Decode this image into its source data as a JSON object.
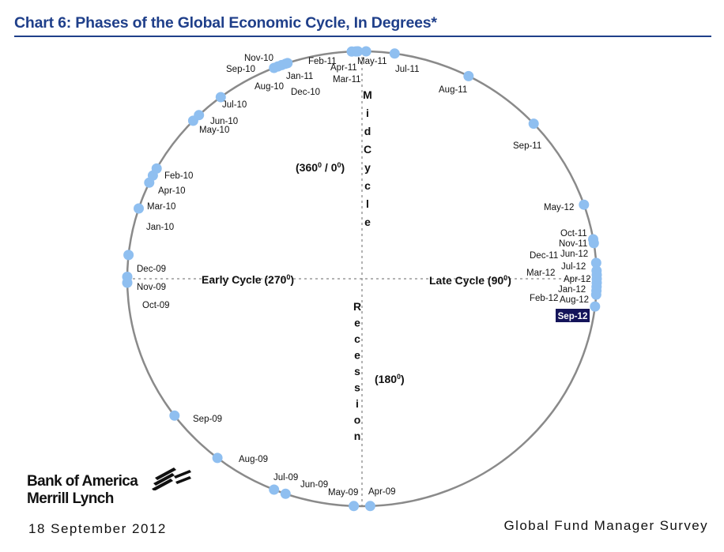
{
  "header": {
    "title": "Chart 6: Phases of the Global Economic Cycle, In Degrees*"
  },
  "footer": {
    "logo_line1": "Bank of America",
    "logo_line2": "Merrill Lynch",
    "date": "18 September 2012",
    "survey": "Global Fund Manager Survey"
  },
  "colors": {
    "title": "#1f3f8a",
    "circle": "#8a8a8a",
    "point": "#8fbff0",
    "highlight_bg": "#14145a",
    "highlight_text": "#ffffff"
  },
  "chart_data": {
    "type": "scatter",
    "coordinate_system": "polar-degrees",
    "orientation": "0° at top, increasing clockwise",
    "axis_labels": {
      "top": {
        "text": "Mid Cycle",
        "angle_label": "(360",
        "angle_label2": " / 0",
        "angle_label_end": ")"
      },
      "right": {
        "text": "Late Cycle (90",
        "text_end": ")"
      },
      "bottom": {
        "text": "Recession",
        "angle_label": "(180",
        "angle_label_end": ")"
      },
      "left": {
        "text": "Early Cycle (270",
        "text_end": ")"
      }
    },
    "degree_sup": "0",
    "highlight": "Sep-12",
    "points": [
      {
        "label": "Apr-09",
        "angle": 178
      },
      {
        "label": "May-09",
        "angle": 182
      },
      {
        "label": "Jun-09",
        "angle": 199
      },
      {
        "label": "Jul-09",
        "angle": 202
      },
      {
        "label": "Aug-09",
        "angle": 218
      },
      {
        "label": "Sep-09",
        "angle": 233
      },
      {
        "label": "Oct-09",
        "angle": 276
      },
      {
        "label": "Nov-09",
        "angle": 270.5
      },
      {
        "label": "Dec-09",
        "angle": 269
      },
      {
        "label": "Jan-10",
        "angle": 288
      },
      {
        "label": "Mar-10",
        "angle": 295
      },
      {
        "label": "Apr-10",
        "angle": 297
      },
      {
        "label": "Feb-10",
        "angle": 299
      },
      {
        "label": "May-10",
        "angle": 314
      },
      {
        "label": "Jun-10",
        "angle": 316
      },
      {
        "label": "Jul-10",
        "angle": 323
      },
      {
        "label": "Aug-10",
        "angle": 338
      },
      {
        "label": "Sep-10",
        "angle": 339
      },
      {
        "label": "Nov-10",
        "angle": 340
      },
      {
        "label": "Dec-10",
        "angle": 341
      },
      {
        "label": "Jan-11",
        "angle": 341.5
      },
      {
        "label": "Feb-11",
        "angle": 357.5
      },
      {
        "label": "Mar-11",
        "angle": 358.5
      },
      {
        "label": "Apr-11",
        "angle": 359
      },
      {
        "label": "May-11",
        "angle": 1
      },
      {
        "label": "Jul-11",
        "angle": 8
      },
      {
        "label": "Aug-11",
        "angle": 27
      },
      {
        "label": "Sep-11",
        "angle": 47
      },
      {
        "label": "May-12",
        "angle": 71
      },
      {
        "label": "Oct-11",
        "angle": 80
      },
      {
        "label": "Nov-11",
        "angle": 81
      },
      {
        "label": "Dec-11",
        "angle": 86
      },
      {
        "label": "Jun-12",
        "angle": 88
      },
      {
        "label": "Mar-12",
        "angle": 89
      },
      {
        "label": "Jul-12",
        "angle": 90
      },
      {
        "label": "Apr-12",
        "angle": 91
      },
      {
        "label": "Jan-12",
        "angle": 92
      },
      {
        "label": "Aug-12",
        "angle": 93
      },
      {
        "label": "Feb-12",
        "angle": 94
      },
      {
        "label": "Sep-12",
        "angle": 97
      }
    ]
  }
}
